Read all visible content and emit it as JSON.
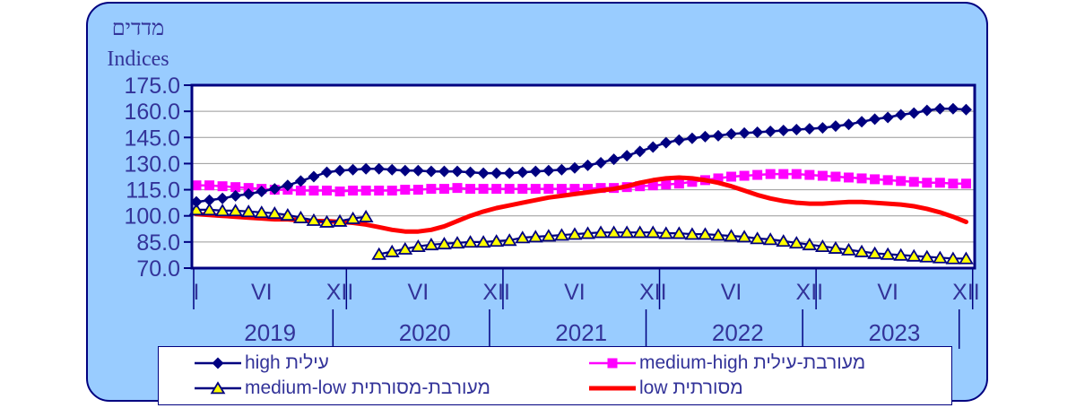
{
  "title": {
    "hebrew": "מדדים",
    "english": "Indices"
  },
  "colors": {
    "panel_background": "#99CCFF",
    "panel_border": "#000080",
    "plot_background": "#FFFFFF",
    "axis": "#000080",
    "gridline": "#999999",
    "text": "#333399",
    "series_high": "#000080",
    "series_medium_high": "#FF00FF",
    "series_medium_low_line": "#000080",
    "series_medium_low_fill": "#FFFF00",
    "series_low": "#FF0000",
    "legend_background": "#FFFFFF"
  },
  "legend": {
    "items": [
      {
        "series_id": "high",
        "label": "high עילית"
      },
      {
        "series_id": "medium_high",
        "label": "medium-high מעורבת-עילית"
      },
      {
        "series_id": "medium_low",
        "label": "medium-low מעורבת-מסורתית"
      },
      {
        "series_id": "low",
        "label": "low מסורתית"
      }
    ]
  },
  "chart_data": {
    "type": "line",
    "title": "מדדים Indices",
    "x_start": "2019-01",
    "x_end": "2023-12",
    "points_per_series": 60,
    "grid": "horizontal",
    "legend_position": "bottom",
    "y_axis": {
      "min": 70,
      "max": 175,
      "step": 15,
      "ticks": [
        "175.0",
        "160.0",
        "145.0",
        "130.0",
        "115.0",
        "100.0",
        "85.0",
        "70.0"
      ]
    },
    "x_axis": {
      "month_ticks": [
        {
          "label": "I",
          "index": 0
        },
        {
          "label": "VI",
          "index": 5
        },
        {
          "label": "XII",
          "index": 11
        },
        {
          "label": "VI",
          "index": 17
        },
        {
          "label": "XII",
          "index": 23
        },
        {
          "label": "VI",
          "index": 29
        },
        {
          "label": "XII",
          "index": 35
        },
        {
          "label": "VI",
          "index": 41
        },
        {
          "label": "XII",
          "index": 47
        },
        {
          "label": "VI",
          "index": 53
        },
        {
          "label": "XII",
          "index": 59
        }
      ],
      "years": [
        "2019",
        "2020",
        "2021",
        "2022",
        "2023"
      ]
    },
    "series": [
      {
        "id": "high",
        "name": "high עילית",
        "color": "#000080",
        "marker": "diamond",
        "line_width": 2.5,
        "values": [
          108,
          109,
          110,
          111.5,
          112.5,
          114,
          115.5,
          117.5,
          120,
          122.5,
          125,
          126,
          126.5,
          127,
          127,
          126.5,
          126,
          126,
          125.5,
          125.5,
          125.5,
          125,
          124.5,
          124.5,
          124.5,
          125,
          125.5,
          126,
          126.5,
          127.5,
          129,
          130.5,
          132.5,
          134.5,
          137,
          139.5,
          142,
          143.5,
          144.5,
          145.5,
          146,
          147,
          147.5,
          148,
          148.5,
          149,
          149.5,
          150,
          150.5,
          151.5,
          152.5,
          154,
          155.5,
          156.5,
          158,
          159,
          160.5,
          161.5,
          161.5,
          161
        ]
      },
      {
        "id": "medium_high",
        "name": "medium-high מעורבת-עילית",
        "color": "#FF00FF",
        "marker": "square",
        "line_width": 2.5,
        "values": [
          117.5,
          117.5,
          117,
          116.5,
          116,
          115.5,
          115,
          115,
          114.5,
          114.5,
          114.5,
          114,
          114.5,
          114.5,
          114.5,
          114.5,
          115,
          115,
          115.5,
          115.5,
          116,
          115.5,
          115.5,
          115.5,
          115.5,
          115.5,
          115.5,
          115.5,
          115.5,
          115.5,
          115.5,
          116,
          116,
          116.5,
          117,
          117.5,
          118,
          118.5,
          119.5,
          120.5,
          121.5,
          122.5,
          123,
          123.5,
          124,
          124,
          124,
          123.5,
          123,
          122.5,
          122,
          121.5,
          121,
          120.5,
          120,
          119.5,
          119,
          119,
          118.5,
          118.5
        ]
      },
      {
        "id": "medium_low",
        "name": "medium-low מעורבת-מסורתית",
        "color": "#000080",
        "marker": "triangle",
        "marker_fill": "#FFFF00",
        "line_width": 2.2,
        "note": "series has a break between 2020-02 and 2020-03",
        "segments": [
          {
            "start_index": 0,
            "values": [
              103.5,
              103.5,
              103,
              103,
              102.5,
              102,
              101.5,
              100.5,
              99,
              97.5,
              96.5,
              97,
              98.5,
              99.5
            ]
          },
          {
            "start_index": 14,
            "values": [
              78,
              79.5,
              81,
              82.5,
              83.5,
              84,
              84.5,
              85,
              85,
              85.5,
              86,
              87.5,
              88,
              88.5,
              89,
              89.5,
              90,
              90.5,
              90.5,
              90.5,
              90.5,
              90.5,
              90,
              90,
              89.5,
              89.5,
              89,
              88.5,
              88,
              87,
              86.5,
              85.5,
              84.5,
              83.5,
              82.5,
              81.5,
              80.5,
              79.5,
              78.5,
              78,
              77.5,
              77,
              76.5,
              76,
              75.5,
              75.5
            ]
          }
        ]
      },
      {
        "id": "low",
        "name": "low מסורתית",
        "color": "#FF0000",
        "marker": "none",
        "line_width": 5,
        "values": [
          101,
          100.5,
          100,
          99.5,
          99,
          98.5,
          98,
          98,
          97.5,
          97,
          97,
          96.5,
          96,
          95,
          93.5,
          92,
          91,
          91,
          92,
          94,
          97,
          100,
          102.5,
          104.5,
          106,
          107.5,
          109,
          110.5,
          111.5,
          112.5,
          113.5,
          114.5,
          115.5,
          117,
          119,
          120.5,
          121.5,
          122,
          121.5,
          120.5,
          119,
          117,
          114.5,
          112,
          110,
          108.5,
          107.5,
          107,
          107,
          107.5,
          108,
          108,
          107.5,
          107,
          106.5,
          105.5,
          104,
          102,
          99.5,
          96.5
        ]
      }
    ]
  }
}
